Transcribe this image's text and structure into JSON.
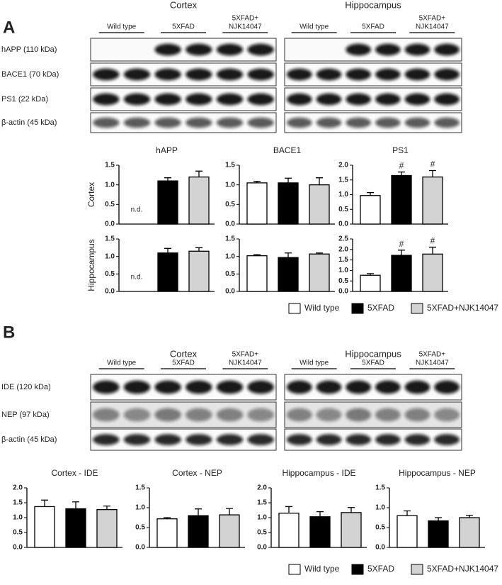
{
  "panels": [
    {
      "letter": "A",
      "regions": [
        {
          "name": "Cortex",
          "groups": [
            [
              "Wild type"
            ],
            [
              "5XFAD"
            ],
            [
              "5XFAD+",
              "NJK14047"
            ]
          ]
        },
        {
          "name": "Hippocampus",
          "groups": [
            [
              "Wild type"
            ],
            [
              "5XFAD"
            ],
            [
              "5XFAD+",
              "NJK14047"
            ]
          ]
        }
      ],
      "blot_rows": [
        "hAPP (110 kDa)",
        "BACE1 (70 kDa)",
        "PS1 (22 kDa)",
        "β-actin (45 kDa)"
      ],
      "legend": [
        {
          "name": "Wild type",
          "color": "#ffffff"
        },
        {
          "name": "5XFAD",
          "color": "#000000"
        },
        {
          "name": "5XFAD+NJK14047",
          "color": "#d3d3d3"
        }
      ]
    },
    {
      "letter": "B",
      "regions": [
        {
          "name": "Cortex",
          "groups": [
            [
              "Wild type"
            ],
            [
              "5XFAD"
            ],
            [
              "5XFAD+",
              "NJK14047"
            ]
          ]
        },
        {
          "name": "Hippocampus",
          "groups": [
            [
              "Wild type"
            ],
            [
              "5XFAD"
            ],
            [
              "5XFAD+",
              "NJK14047"
            ]
          ]
        }
      ],
      "blot_rows": [
        "IDE (120 kDa)",
        "NEP (97 kDa)",
        "β-actin (45 kDa)"
      ],
      "legend": [
        {
          "name": "Wild type",
          "color": "#ffffff"
        },
        {
          "name": "5XFAD",
          "color": "#000000"
        },
        {
          "name": "5XFAD+NJK14047",
          "color": "#d3d3d3"
        }
      ]
    }
  ],
  "chart_data": [
    {
      "type": "bar",
      "title": "hAPP",
      "ylabel": "Cortex",
      "values": [
        null,
        1.1,
        1.2
      ],
      "errors": [
        null,
        0.08,
        0.15
      ],
      "annotations": [
        "n.d.",
        null,
        null
      ],
      "colors": [
        "#ffffff",
        "#000000",
        "#d3d3d3"
      ],
      "ylim": [
        0,
        1.5
      ],
      "yticks": [
        {
          "value": 0,
          "label": "0.0"
        },
        0.5,
        {
          "value": 1,
          "label": "1.0"
        },
        1.5
      ]
    },
    {
      "type": "bar",
      "title": "BACE1",
      "values": [
        1.05,
        1.05,
        1.0
      ],
      "errors": [
        0.04,
        0.12,
        0.18
      ],
      "colors": [
        "#ffffff",
        "#000000",
        "#d3d3d3"
      ],
      "ylim": [
        0,
        1.5
      ],
      "yticks": [
        {
          "value": 0,
          "label": "0.0"
        },
        0.5,
        {
          "value": 1,
          "label": "1.0"
        },
        1.5
      ]
    },
    {
      "type": "bar",
      "title": "PS1",
      "values": [
        0.97,
        1.65,
        1.6
      ],
      "errors": [
        0.1,
        0.12,
        0.22
      ],
      "annotations": [
        null,
        "#",
        "#"
      ],
      "colors": [
        "#ffffff",
        "#000000",
        "#d3d3d3"
      ],
      "ylim": [
        0,
        2
      ],
      "yticks": [
        {
          "value": 0,
          "label": "0.0"
        },
        0.5,
        {
          "value": 1,
          "label": "1.0"
        },
        1.5,
        {
          "value": 2,
          "label": "2.0"
        }
      ]
    },
    {
      "type": "bar",
      "ylabel": "Hippocampus",
      "values": [
        null,
        1.1,
        1.15
      ],
      "errors": [
        null,
        0.13,
        0.1
      ],
      "annotations": [
        "n.d.",
        null,
        null
      ],
      "colors": [
        "#ffffff",
        "#000000",
        "#d3d3d3"
      ],
      "ylim": [
        0,
        1.5
      ],
      "yticks": [
        {
          "value": 0,
          "label": "0.0"
        },
        0.5,
        {
          "value": 1,
          "label": "1.0"
        },
        1.5
      ]
    },
    {
      "type": "bar",
      "values": [
        1.02,
        0.97,
        1.07
      ],
      "errors": [
        0.03,
        0.13,
        0.03
      ],
      "colors": [
        "#ffffff",
        "#000000",
        "#d3d3d3"
      ],
      "ylim": [
        0,
        1.5
      ],
      "yticks": [
        {
          "value": 0,
          "label": "0.0"
        },
        0.5,
        {
          "value": 1,
          "label": "1.0"
        },
        1.5
      ]
    },
    {
      "type": "bar",
      "values": [
        0.77,
        1.72,
        1.78
      ],
      "errors": [
        0.08,
        0.25,
        0.33
      ],
      "annotations": [
        null,
        "#",
        "#"
      ],
      "colors": [
        "#ffffff",
        "#000000",
        "#d3d3d3"
      ],
      "ylim": [
        0,
        2.5
      ],
      "yticks": [
        {
          "value": 0,
          "label": "0.0"
        },
        0.5,
        {
          "value": 1,
          "label": "1.0"
        },
        1.5,
        {
          "value": 2,
          "label": "2.0"
        },
        2.5
      ]
    },
    {
      "type": "bar",
      "title": "Cortex - IDE",
      "values": [
        1.37,
        1.3,
        1.27
      ],
      "errors": [
        0.22,
        0.23,
        0.12
      ],
      "colors": [
        "#ffffff",
        "#000000",
        "#d3d3d3"
      ],
      "ylim": [
        0,
        2
      ],
      "yticks": [
        {
          "value": 0,
          "label": "0.0"
        },
        0.5,
        {
          "value": 1,
          "label": "1.0"
        },
        1.5,
        {
          "value": 2,
          "label": "2.0"
        }
      ]
    },
    {
      "type": "bar",
      "title": "Cortex - NEP",
      "values": [
        0.72,
        0.8,
        0.82
      ],
      "errors": [
        0.03,
        0.17,
        0.16
      ],
      "colors": [
        "#ffffff",
        "#000000",
        "#d3d3d3"
      ],
      "ylim": [
        0,
        1.5
      ],
      "yticks": [
        {
          "value": 0,
          "label": "0.0"
        },
        0.5,
        {
          "value": 1,
          "label": "1.0"
        },
        1.5
      ]
    },
    {
      "type": "bar",
      "title": "Hippocampus  - IDE",
      "values": [
        1.15,
        1.03,
        1.17
      ],
      "errors": [
        0.22,
        0.17,
        0.17
      ],
      "colors": [
        "#ffffff",
        "#000000",
        "#d3d3d3"
      ],
      "ylim": [
        0,
        2
      ],
      "yticks": [
        {
          "value": 0,
          "label": "0.0"
        },
        0.5,
        {
          "value": 1,
          "label": "1.0"
        },
        1.5,
        {
          "value": 2,
          "label": "2.0"
        }
      ]
    },
    {
      "type": "bar",
      "title": "Hippocampus  - NEP",
      "values": [
        0.8,
        0.67,
        0.75
      ],
      "errors": [
        0.12,
        0.08,
        0.06
      ],
      "colors": [
        "#ffffff",
        "#000000",
        "#d3d3d3"
      ],
      "ylim": [
        0,
        1.5
      ],
      "yticks": [
        {
          "value": 0,
          "label": "0.0"
        },
        0.5,
        {
          "value": 1,
          "label": "1.0"
        },
        1.5
      ]
    }
  ]
}
